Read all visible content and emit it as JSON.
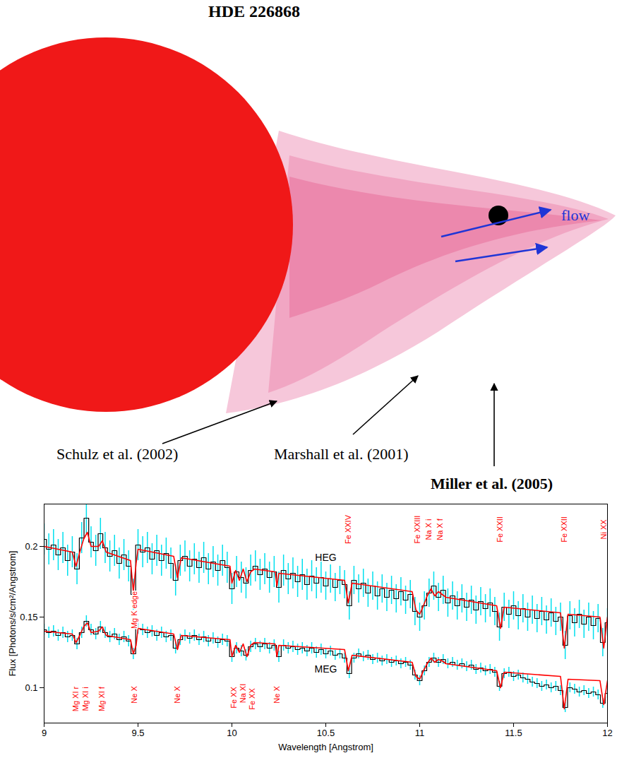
{
  "diagram": {
    "title": "HDE 226868",
    "flow": "flow",
    "references": [
      "Schulz et al. (2002)",
      "Marshall et al. (2001)",
      "Miller et al. (2005)"
    ]
  },
  "chart_data": {
    "type": "line",
    "x_label": "Wavelength [Angstrom]",
    "y_label": "Flux [Photons/s/cm²/Angstrom]",
    "xlim": [
      9,
      12
    ],
    "ylim": [
      0.075,
      0.23
    ],
    "xticks": [
      9,
      9.5,
      10,
      10.5,
      11,
      11.5,
      12
    ],
    "yticks": [
      0.1,
      0.15,
      0.2
    ],
    "grid": false,
    "x": [
      9,
      9.025,
      9.05,
      9.075,
      9.1,
      9.125,
      9.15,
      9.175,
      9.2,
      9.225,
      9.25,
      9.275,
      9.3,
      9.325,
      9.35,
      9.375,
      9.4,
      9.425,
      9.45,
      9.475,
      9.5,
      9.525,
      9.55,
      9.575,
      9.6,
      9.625,
      9.65,
      9.675,
      9.7,
      9.725,
      9.75,
      9.775,
      9.8,
      9.825,
      9.85,
      9.875,
      9.9,
      9.925,
      9.95,
      9.975,
      10,
      10.025,
      10.05,
      10.075,
      10.1,
      10.125,
      10.15,
      10.175,
      10.2,
      10.225,
      10.25,
      10.275,
      10.3,
      10.325,
      10.35,
      10.375,
      10.4,
      10.425,
      10.45,
      10.475,
      10.5,
      10.525,
      10.55,
      10.575,
      10.6,
      10.625,
      10.65,
      10.675,
      10.7,
      10.725,
      10.75,
      10.775,
      10.8,
      10.825,
      10.85,
      10.875,
      10.9,
      10.925,
      10.95,
      10.975,
      11,
      11.025,
      11.05,
      11.075,
      11.1,
      11.125,
      11.15,
      11.175,
      11.2,
      11.225,
      11.25,
      11.275,
      11.3,
      11.325,
      11.35,
      11.375,
      11.4,
      11.425,
      11.45,
      11.475,
      11.5,
      11.525,
      11.55,
      11.575,
      11.6,
      11.625,
      11.65,
      11.675,
      11.7,
      11.725,
      11.75,
      11.775,
      11.8,
      11.825,
      11.85,
      11.875,
      11.9,
      11.925,
      11.95,
      11.975,
      12
    ],
    "series": [
      {
        "name": "HEG",
        "color": "#000000",
        "line_style": "step",
        "label_at": {
          "x": 10.5,
          "y": 0.192
        },
        "values": [
          0.205,
          0.198,
          0.201,
          0.194,
          0.199,
          0.19,
          0.196,
          0.184,
          0.206,
          0.22,
          0.203,
          0.197,
          0.209,
          0.199,
          0.193,
          0.197,
          0.188,
          0.194,
          0.186,
          0.166,
          0.201,
          0.196,
          0.199,
          0.191,
          0.197,
          0.19,
          0.195,
          0.188,
          0.176,
          0.19,
          0.193,
          0.186,
          0.191,
          0.185,
          0.192,
          0.184,
          0.189,
          0.183,
          0.19,
          0.185,
          0.17,
          0.182,
          0.178,
          0.174,
          0.183,
          0.186,
          0.18,
          0.184,
          0.178,
          0.182,
          0.171,
          0.183,
          0.177,
          0.181,
          0.175,
          0.18,
          0.173,
          0.179,
          0.174,
          0.178,
          0.172,
          0.177,
          0.171,
          0.176,
          0.173,
          0.158,
          0.176,
          0.17,
          0.174,
          0.167,
          0.172,
          0.165,
          0.17,
          0.164,
          0.169,
          0.163,
          0.168,
          0.162,
          0.166,
          0.154,
          0.15,
          0.158,
          0.167,
          0.172,
          0.164,
          0.169,
          0.16,
          0.165,
          0.158,
          0.163,
          0.157,
          0.162,
          0.155,
          0.161,
          0.156,
          0.16,
          0.154,
          0.143,
          0.157,
          0.152,
          0.158,
          0.151,
          0.156,
          0.15,
          0.155,
          0.149,
          0.154,
          0.148,
          0.153,
          0.147,
          0.15,
          0.13,
          0.151,
          0.146,
          0.152,
          0.145,
          0.15,
          0.144,
          0.149,
          0.132,
          0.146
        ],
        "errors": [
          0.011,
          0.011,
          0.011,
          0.011,
          0.011,
          0.011,
          0.011,
          0.011,
          0.011,
          0.011,
          0.011,
          0.011,
          0.011,
          0.011,
          0.011,
          0.011,
          0.011,
          0.011,
          0.011,
          0.011,
          0.011,
          0.011,
          0.011,
          0.011,
          0.011,
          0.011,
          0.011,
          0.011,
          0.011,
          0.011,
          0.011,
          0.011,
          0.011,
          0.011,
          0.011,
          0.011,
          0.011,
          0.011,
          0.011,
          0.011,
          0.011,
          0.011,
          0.011,
          0.011,
          0.011,
          0.011,
          0.011,
          0.011,
          0.011,
          0.011,
          0.011,
          0.011,
          0.011,
          0.011,
          0.011,
          0.011,
          0.011,
          0.011,
          0.011,
          0.011,
          0.01,
          0.01,
          0.01,
          0.01,
          0.01,
          0.01,
          0.01,
          0.01,
          0.01,
          0.01,
          0.01,
          0.01,
          0.01,
          0.01,
          0.01,
          0.01,
          0.01,
          0.01,
          0.01,
          0.01,
          0.01,
          0.01,
          0.01,
          0.01,
          0.01,
          0.01,
          0.01,
          0.01,
          0.01,
          0.01,
          0.01,
          0.01,
          0.01,
          0.01,
          0.01,
          0.01,
          0.01,
          0.01,
          0.01,
          0.01,
          0.01,
          0.01,
          0.01,
          0.01,
          0.01,
          0.01,
          0.01,
          0.01,
          0.01,
          0.01,
          0.01,
          0.01,
          0.01,
          0.01,
          0.01,
          0.01,
          0.01,
          0.01,
          0.01,
          0.01,
          0.01
        ]
      },
      {
        "name": "MEG",
        "color": "#000000",
        "line_style": "step",
        "label_at": {
          "x": 10.5,
          "y": 0.113
        },
        "values": [
          0.141,
          0.139,
          0.14,
          0.137,
          0.139,
          0.136,
          0.137,
          0.131,
          0.139,
          0.147,
          0.141,
          0.138,
          0.143,
          0.139,
          0.136,
          0.138,
          0.134,
          0.136,
          0.133,
          0.124,
          0.142,
          0.141,
          0.139,
          0.14,
          0.137,
          0.139,
          0.136,
          0.137,
          0.128,
          0.134,
          0.137,
          0.135,
          0.137,
          0.134,
          0.136,
          0.133,
          0.135,
          0.132,
          0.134,
          0.133,
          0.122,
          0.128,
          0.126,
          0.123,
          0.129,
          0.131,
          0.129,
          0.131,
          0.128,
          0.13,
          0.122,
          0.13,
          0.128,
          0.129,
          0.127,
          0.128,
          0.126,
          0.128,
          0.125,
          0.127,
          0.124,
          0.126,
          0.123,
          0.124,
          0.121,
          0.11,
          0.121,
          0.124,
          0.122,
          0.123,
          0.12,
          0.121,
          0.119,
          0.12,
          0.118,
          0.119,
          0.117,
          0.118,
          0.116,
          0.109,
          0.105,
          0.112,
          0.118,
          0.121,
          0.118,
          0.12,
          0.117,
          0.118,
          0.116,
          0.117,
          0.115,
          0.116,
          0.113,
          0.114,
          0.112,
          0.113,
          0.111,
          0.101,
          0.11,
          0.111,
          0.108,
          0.109,
          0.107,
          0.106,
          0.104,
          0.103,
          0.101,
          0.102,
          0.1,
          0.101,
          0.098,
          0.086,
          0.1,
          0.099,
          0.097,
          0.098,
          0.096,
          0.097,
          0.095,
          0.089,
          0.096
        ],
        "errors": [
          0.004,
          0.004,
          0.004,
          0.004,
          0.004,
          0.004,
          0.004,
          0.004,
          0.004,
          0.004,
          0.004,
          0.004,
          0.004,
          0.004,
          0.004,
          0.004,
          0.004,
          0.004,
          0.004,
          0.004,
          0.004,
          0.004,
          0.004,
          0.004,
          0.004,
          0.004,
          0.004,
          0.004,
          0.004,
          0.004,
          0.004,
          0.004,
          0.004,
          0.004,
          0.004,
          0.004,
          0.004,
          0.004,
          0.004,
          0.004,
          0.004,
          0.004,
          0.004,
          0.004,
          0.004,
          0.004,
          0.004,
          0.004,
          0.004,
          0.004,
          0.004,
          0.004,
          0.004,
          0.004,
          0.004,
          0.004,
          0.004,
          0.004,
          0.004,
          0.004,
          0.0035,
          0.0035,
          0.0035,
          0.0035,
          0.0035,
          0.0035,
          0.0035,
          0.0035,
          0.0035,
          0.0035,
          0.0035,
          0.0035,
          0.0035,
          0.0035,
          0.0035,
          0.0035,
          0.0035,
          0.0035,
          0.0035,
          0.0035,
          0.0035,
          0.0035,
          0.0035,
          0.0035,
          0.0035,
          0.0035,
          0.0035,
          0.0035,
          0.0035,
          0.0035,
          0.0035,
          0.0035,
          0.0035,
          0.0035,
          0.0035,
          0.0035,
          0.0035,
          0.0035,
          0.0035,
          0.0035,
          0.0035,
          0.0035,
          0.0035,
          0.0035,
          0.0035,
          0.0035,
          0.0035,
          0.0035,
          0.0035,
          0.0035,
          0.0035,
          0.0035,
          0.0035,
          0.0035,
          0.0035,
          0.0035,
          0.0035,
          0.0035,
          0.0035,
          0.0035,
          0.0035
        ]
      },
      {
        "color": "#ff0000",
        "line_style": "solid",
        "x": [
          9,
          9.15,
          9.17,
          9.19,
          9.21,
          9.23,
          9.25,
          9.29,
          9.31,
          9.33,
          9.46,
          9.475,
          9.49,
          9.5,
          9.69,
          9.71,
          9.73,
          9.99,
          10,
          10.02,
          10.04,
          10.06,
          10.08,
          10.1,
          10.12,
          10.23,
          10.24,
          10.25,
          10.6,
          10.62,
          10.64,
          10.96,
          10.98,
          11,
          11.02,
          11.04,
          11.06,
          11.08,
          11.1,
          11.12,
          11.14,
          11.41,
          11.43,
          11.45,
          11.75,
          11.77,
          11.79,
          11.96,
          11.98,
          12
        ],
        "values": [
          0.2,
          0.196,
          0.186,
          0.196,
          0.205,
          0.21,
          0.2,
          0.2,
          0.204,
          0.196,
          0.19,
          0.168,
          0.188,
          0.198,
          0.193,
          0.178,
          0.192,
          0.186,
          0.174,
          0.183,
          0.176,
          0.184,
          0.175,
          0.182,
          0.184,
          0.182,
          0.172,
          0.181,
          0.176,
          0.16,
          0.174,
          0.168,
          0.155,
          0.152,
          0.158,
          0.165,
          0.17,
          0.165,
          0.168,
          0.166,
          0.164,
          0.158,
          0.142,
          0.157,
          0.153,
          0.128,
          0.152,
          0.15,
          0.128,
          0.15
        ]
      },
      {
        "color": "#ff0000",
        "line_style": "solid",
        "x": [
          9,
          9.15,
          9.17,
          9.19,
          9.21,
          9.23,
          9.25,
          9.29,
          9.31,
          9.33,
          9.46,
          9.475,
          9.49,
          9.5,
          9.69,
          9.71,
          9.73,
          9.99,
          10,
          10.02,
          10.04,
          10.06,
          10.08,
          10.1,
          10.12,
          10.23,
          10.24,
          10.25,
          10.6,
          10.62,
          10.64,
          10.96,
          10.98,
          11,
          11.02,
          11.04,
          11.06,
          11.08,
          11.1,
          11.12,
          11.14,
          11.41,
          11.43,
          11.45,
          11.75,
          11.77,
          11.79,
          11.96,
          11.98,
          12
        ],
        "values": [
          0.14,
          0.138,
          0.132,
          0.137,
          0.143,
          0.146,
          0.139,
          0.14,
          0.143,
          0.137,
          0.134,
          0.124,
          0.13,
          0.142,
          0.138,
          0.127,
          0.137,
          0.134,
          0.122,
          0.13,
          0.125,
          0.131,
          0.122,
          0.13,
          0.132,
          0.131,
          0.122,
          0.13,
          0.127,
          0.112,
          0.123,
          0.118,
          0.108,
          0.106,
          0.112,
          0.117,
          0.121,
          0.118,
          0.12,
          0.119,
          0.117,
          0.112,
          0.1,
          0.111,
          0.108,
          0.085,
          0.106,
          0.105,
          0.088,
          0.105
        ]
      }
    ],
    "annotations": [
      {
        "text": "Fe XXIV",
        "x": 10.62,
        "y": 0.212
      },
      {
        "text": "Fe XXIII",
        "x": 10.99,
        "y": 0.212
      },
      {
        "text": "Na X i",
        "x": 11.05,
        "y": 0.212
      },
      {
        "text": "Na X f",
        "x": 11.11,
        "y": 0.212
      },
      {
        "text": "Fe XXII",
        "x": 11.43,
        "y": 0.212
      },
      {
        "text": "Fe XXII",
        "x": 11.77,
        "y": 0.212
      },
      {
        "text": "Ni XX",
        "x": 11.98,
        "y": 0.212
      },
      {
        "text": "Mg K edge",
        "x": 9.48,
        "y": 0.155
      },
      {
        "text": "Mg XI r",
        "x": 9.17,
        "y": 0.092
      },
      {
        "text": "Mg XI i",
        "x": 9.22,
        "y": 0.092
      },
      {
        "text": "Mg XI f",
        "x": 9.31,
        "y": 0.092
      },
      {
        "text": "Ne X",
        "x": 9.48,
        "y": 0.095
      },
      {
        "text": "Ne X",
        "x": 9.71,
        "y": 0.095
      },
      {
        "text": "Fe XX",
        "x": 10.01,
        "y": 0.093
      },
      {
        "text": "Na XI",
        "x": 10.06,
        "y": 0.096
      },
      {
        "text": "Fe XX",
        "x": 10.11,
        "y": 0.092
      },
      {
        "text": "Ne X",
        "x": 10.24,
        "y": 0.095
      }
    ]
  }
}
